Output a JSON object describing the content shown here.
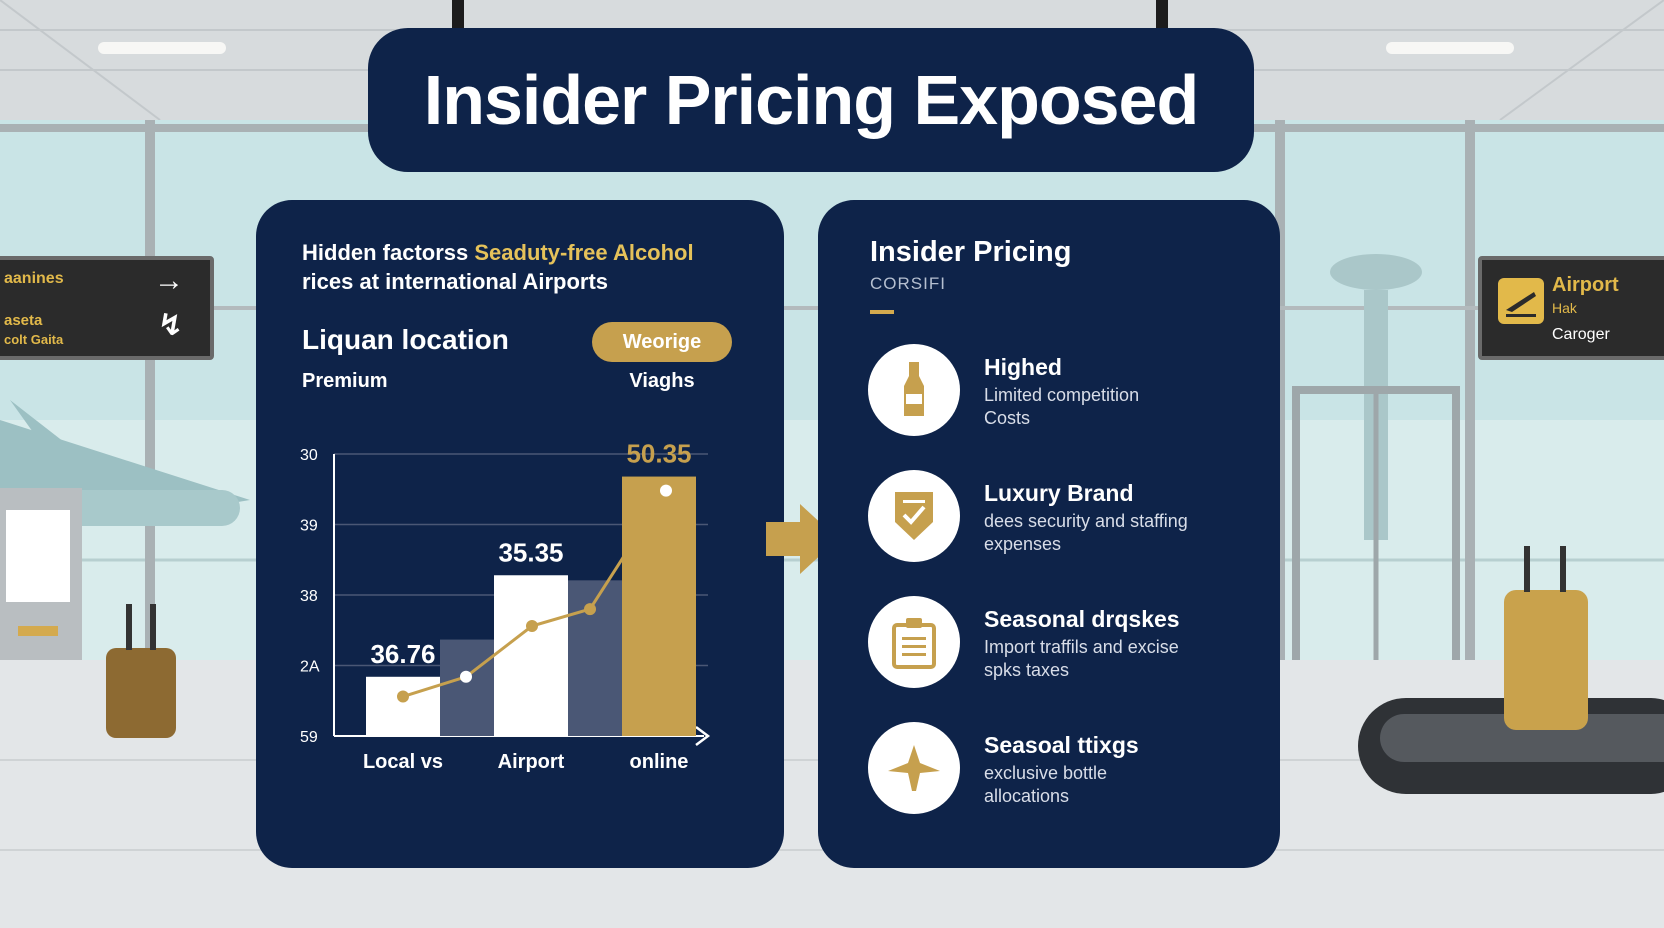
{
  "title": "Insider Pricing Exposed",
  "left_panel": {
    "heading_part1": "Hidden factorss ",
    "heading_highlight": "Seaduty-free Alcohol",
    "heading_line2": "rices at international Airports",
    "section_title": "Liquan location",
    "subtitle": "Premium",
    "pill_label": "Weorige",
    "pill_caption": "Viaghs"
  },
  "chart_data": {
    "type": "bar",
    "categories": [
      "Local vs",
      "Airport",
      "online"
    ],
    "series": [
      {
        "values": [
          36.76,
          35.35,
          50.35
        ],
        "colors": [
          "#ffffff",
          "#ffffff",
          "#c6a04e"
        ]
      }
    ],
    "data_labels": [
      "36.76",
      "35.35",
      "50.35"
    ],
    "y_tick_labels": [
      "30",
      "39",
      "38",
      "2A",
      "59"
    ],
    "bar_fill_fractions": [
      0.21,
      0.57,
      0.92
    ],
    "line_points_fraction": [
      0.14,
      0.21,
      0.39,
      0.45,
      0.87
    ],
    "grid": true,
    "colors": {
      "navy": "#0e2349",
      "gold": "#c6a04e",
      "white": "#ffffff",
      "shade": "#4a5775"
    }
  },
  "right_panel": {
    "title": "Insider Pricing",
    "subtitle": "CORSIFI",
    "items": [
      {
        "icon": "bottle-icon",
        "title": "Highed",
        "desc": [
          "Limited competition",
          "Costs"
        ]
      },
      {
        "icon": "shield-check-icon",
        "title": "Luxury Brand",
        "desc": [
          "dees security and staffing",
          "expenses"
        ]
      },
      {
        "icon": "clipboard-icon",
        "title": "Seasonal drqskes",
        "desc": [
          "Import traffils and excise",
          "spks taxes"
        ]
      },
      {
        "icon": "plane-icon",
        "title": "Seasoal ttixgs",
        "desc": [
          "exclusive bottle",
          "allocations"
        ]
      }
    ]
  },
  "signs": {
    "left_line1": "aanines",
    "left_line2a": "aseta",
    "left_line2b": "colt Gaita",
    "right_line1": "Airport",
    "right_line2": "Hak",
    "right_line3": "Caroger"
  }
}
